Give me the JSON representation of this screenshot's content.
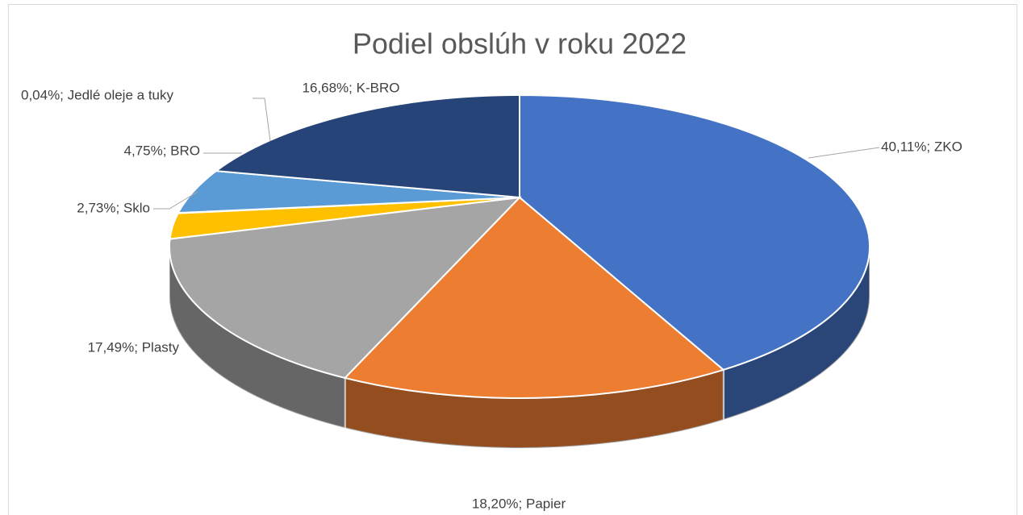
{
  "chart_data": {
    "type": "pie3d",
    "title": "Podiel obslúh v roku 2022",
    "values": [
      40.11,
      18.2,
      17.49,
      2.73,
      0.04,
      4.75,
      16.68
    ],
    "value_labels": [
      "40,11%; ZKO",
      "18,20%; Papier",
      "17,49%; Plasty",
      "2,73%; Sklo",
      "0,04%; Jedlé oleje a tuky",
      "4,75%; BRO",
      "16,68%; K-BRO"
    ],
    "colors": [
      "#4472c4",
      "#ed7d31",
      "#a5a5a5",
      "#ffc000",
      "#70ad47",
      "#5b9bd5",
      "#264478"
    ]
  }
}
